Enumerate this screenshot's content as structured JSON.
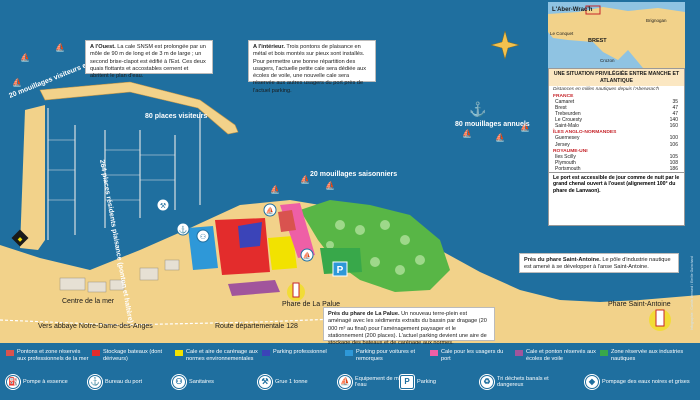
{
  "notes": {
    "ouest_title": "A l'Ouest.",
    "ouest_text": "La cale SNSM est prolongée par un môle de 90 m de long et de 3 m de large ; un second brise-clapot est édifié à l'Est. Ces deux quais flottants et accostables cernent et abritent le plan d'eau.",
    "interieur_title": "A l'intérieur.",
    "interieur_text": "Trois pontons de plaisance en métal et bois montés sur pieux sont installés. Pour permettre une bonne répartition des usagers, l'actuelle petite cale sera dédiée aux écoles de voile, une nouvelle cale sera réservée aux autres usagers du port près de l'actuel parking.",
    "palue_title": "Près du phare de La Palue.",
    "palue_text": "Un nouveau terre-plein est aménagé avec les sédiments extraits du bassin par dragage (20 000 m³ au final) pour l'aménagement paysager et le stationnement (200 places). L'actuel parking devient une aire de stockage des bateaux et de carénage aux normes.",
    "saint_antoine_title": "Près du phare Saint-Antoine.",
    "saint_antoine_text": "Le pôle d'industrie nautique est amené à se développer à l'anse Saint-Antoine."
  },
  "map_labels": {
    "mouillages_visiteurs": "20 mouillages visiteurs et régatiers",
    "places_visiteurs": "80 places visiteurs",
    "places_residents": "264 places résidents plaisance (ponton et haltère)",
    "mouillages_saisonniers": "20 mouillages saisonniers",
    "mouillages_annuels": "80 mouillages annuels",
    "centre_mer": "Centre de la mer",
    "phare_palue": "Phare de La Palue",
    "phare_saint_antoine": "Phare Saint-Antoine",
    "route": "Route départementale 128",
    "vers_abbaye": "Vers abbaye Notre-Dame-des-Anges"
  },
  "inset_map": {
    "title": "L'Aber-Wrac'h",
    "places": [
      "Brignogan",
      "Le Conquet",
      "BREST",
      "Crozon"
    ]
  },
  "info_panel": {
    "header": "UNE SITUATION PRIVILÉGIÉE ENTRE MANCHE ET ATLANTIQUE",
    "subheader": "Distances en milles nautiques depuis l'Aberwrac'h",
    "groups": [
      {
        "name": "FRANCE",
        "rows": [
          [
            "Camaret",
            "35"
          ],
          [
            "Brest",
            "47"
          ],
          [
            "Trebeurden",
            "47"
          ],
          [
            "Le Crouesty",
            "140"
          ],
          [
            "Saint-Malo",
            "160"
          ]
        ]
      },
      {
        "name": "ÎLES ANGLO-NORMANDES",
        "rows": [
          [
            "Guernesey",
            "100"
          ],
          [
            "Jersey",
            "106"
          ]
        ]
      },
      {
        "name": "ROYAUME-UNI",
        "rows": [
          [
            "Iles Scilly",
            "105"
          ],
          [
            "Plymouth",
            "108"
          ],
          [
            "Portsmouth",
            "186"
          ]
        ]
      }
    ],
    "footer": "Le port est accessible de jour comme de nuit par le grand chenal ouvert à l'ouest (alignement 100° du phare de Lanvaon)."
  },
  "legend": {
    "zones": [
      {
        "color": "#d9534f",
        "label": "Pontons et zone réservés aux professionnels de la mer"
      },
      {
        "color": "#e32c2c",
        "label": "Stockage bateaux (dont dériveurs)"
      },
      {
        "color": "#f2e200",
        "label": "Cale et aire de carénage aux normes environnementales"
      },
      {
        "color": "#3b44b8",
        "label": "Parking professionnel"
      },
      {
        "color": "#2e98d8",
        "label": "Parking pour voitures et remorques"
      },
      {
        "color": "#ee5fa6",
        "label": "Cale pour les usagers du port"
      },
      {
        "color": "#a1559c",
        "label": "Cale et ponton réservés aux écoles de voile"
      },
      {
        "color": "#38a84a",
        "label": "Zone réservée aux industries nautiques"
      }
    ],
    "services": [
      {
        "icon": "fuel-pump-icon",
        "glyph": "⛽",
        "label": "Pompe à essence"
      },
      {
        "icon": "harbour-office-icon",
        "glyph": "⚓",
        "label": "Bureau du port"
      },
      {
        "icon": "toilets-icon",
        "glyph": "⚇",
        "label": "Sanitaires"
      },
      {
        "icon": "crane-icon",
        "glyph": "⚒",
        "label": "Grue 1 tonne"
      },
      {
        "icon": "launch-equipment-icon",
        "glyph": "⛵",
        "label": "Equipement de mise à l'eau"
      },
      {
        "icon": "parking-icon",
        "glyph": "P",
        "label": "Parking"
      },
      {
        "icon": "waste-sorting-icon",
        "glyph": "♻",
        "label": "Tri déchets banals et dangereux"
      },
      {
        "icon": "waste-water-pump-icon",
        "glyph": "◆",
        "label": "Pompage des eaux noires et grises"
      }
    ]
  },
  "credit": "Infographie : Carole Bernard / Emilie Guinchard"
}
